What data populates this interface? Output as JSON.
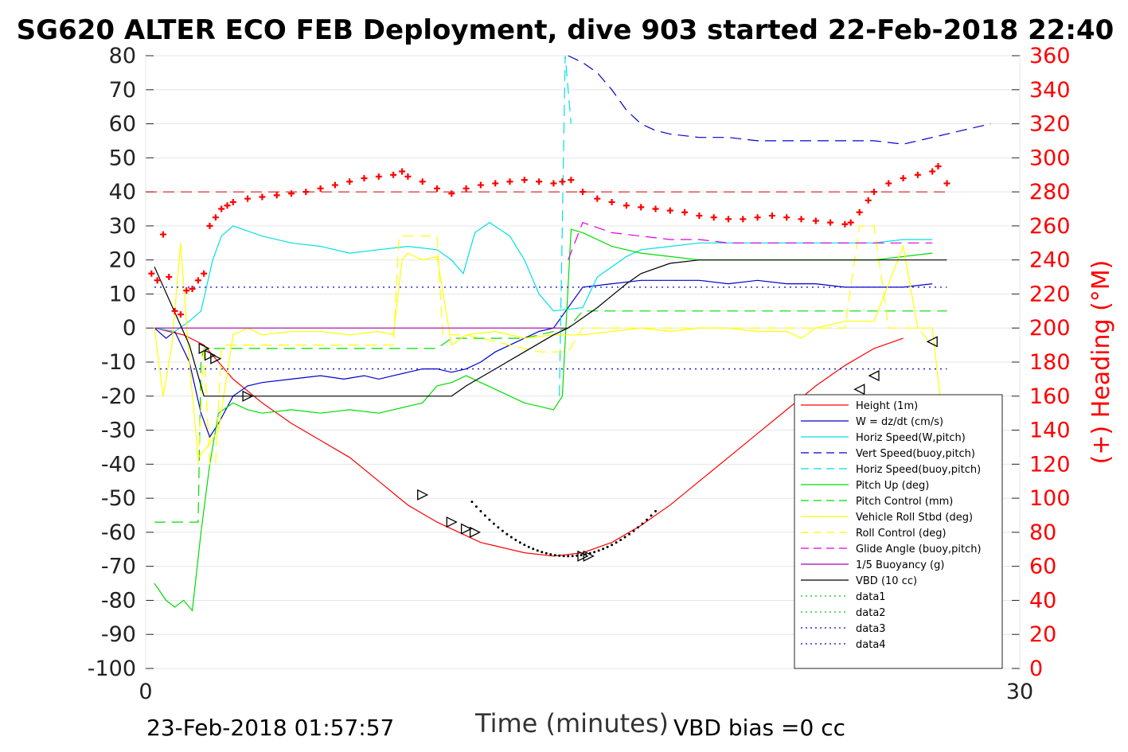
{
  "title": "SG620 ALTER ECO FEB Deployment, dive 903 started 22-Feb-2018 22:40",
  "footer": {
    "date": "23-Feb-2018 01:57:57",
    "vbd_bias": "VBD bias =0 cc"
  },
  "chart_data": {
    "type": "line",
    "xlabel": "Time (minutes)",
    "ylabel_right": "(+) Heading (°M)",
    "xlim": [
      0,
      30
    ],
    "ylim": [
      -100,
      80
    ],
    "ylim_right": [
      0,
      360
    ],
    "x_ticks": [
      "0",
      "30"
    ],
    "y_ticks": [
      "80",
      "70",
      "60",
      "50",
      "40",
      "30",
      "20",
      "10",
      "0",
      "-10",
      "-20",
      "-30",
      "-40",
      "-50",
      "-60",
      "-70",
      "-80",
      "-90",
      "-100"
    ],
    "y_right_ticks": [
      "360",
      "340",
      "320",
      "300",
      "280",
      "260",
      "240",
      "220",
      "200",
      "180",
      "160",
      "140",
      "120",
      "100",
      "80",
      "60",
      "40",
      "20",
      "0"
    ],
    "grid": true,
    "legend_position": "lower-right",
    "series": [
      {
        "name": "Height (1m)",
        "color": "#ff0000",
        "style": "solid",
        "x": [
          0.3,
          0.8,
          1.3,
          2.0,
          2.5,
          3.0,
          4.0,
          5.0,
          6.0,
          7.0,
          8.0,
          9.0,
          10.0,
          11.0,
          11.5,
          12.0,
          13.0,
          14.0,
          15.0,
          16.0,
          17.0,
          18.0,
          19.0,
          20.0,
          21.0,
          22.0,
          23.0,
          24.0,
          25.0,
          26.0,
          27.0,
          28.0,
          29.0,
          30.0
        ],
        "y": [
          0,
          -1,
          -2,
          -5,
          -10,
          -15,
          -22,
          -28,
          -33,
          -38,
          -45,
          -52,
          -57,
          -61,
          -63,
          -64,
          -66,
          -67,
          -66,
          -63,
          -58,
          -52,
          -45,
          -38,
          -31,
          -24,
          -17,
          -11,
          -6,
          -3,
          null,
          null,
          null,
          null
        ]
      },
      {
        "name": "W = dz/dt (cm/s)",
        "color": "#0000cc",
        "style": "solid",
        "x": [
          0.3,
          0.7,
          1.0,
          1.5,
          1.9,
          2.2,
          2.5,
          3.0,
          3.5,
          4.0,
          5.0,
          6.0,
          6.8,
          7.5,
          8.0,
          8.5,
          9.0,
          9.5,
          10.0,
          10.5,
          11.0,
          11.5,
          12.0,
          12.5,
          13.0,
          13.5,
          14.0,
          15.0,
          16.0,
          17.0,
          18.0,
          19.0,
          20.0,
          21.0,
          22.0,
          23.0,
          24.0,
          25.0,
          26.0,
          27.0,
          28.0,
          29.0,
          30.0
        ],
        "y": [
          0,
          -3,
          -1,
          -10,
          -25,
          -32,
          -28,
          -20,
          -17,
          -16,
          -15,
          -14,
          -15,
          -14,
          -15,
          -14,
          -13,
          -12,
          -12,
          -13,
          -12,
          -10,
          -7,
          -5,
          -3,
          -1,
          0,
          12,
          13,
          14,
          14,
          14,
          13,
          14,
          13,
          13,
          12,
          12,
          12,
          13,
          null,
          null,
          null
        ]
      },
      {
        "name": "Horiz Speed(W,pitch)",
        "color": "#00e0e0",
        "style": "solid",
        "x": [
          0.3,
          1.0,
          1.5,
          1.9,
          2.3,
          2.6,
          3.0,
          4.0,
          5.0,
          6.0,
          7.0,
          8.0,
          9.0,
          10.0,
          10.5,
          10.9,
          11.3,
          11.8,
          12.5,
          13.0,
          13.5,
          14.0,
          15.0,
          15.5,
          16.0,
          16.5,
          17.0,
          18.0,
          19.0,
          20.0,
          21.0,
          22.0,
          23.0,
          24.0,
          25.0,
          26.0,
          27.0,
          28.0,
          29.0,
          30.0
        ],
        "y": [
          0,
          -1,
          2,
          5,
          20,
          27,
          30,
          27,
          25,
          24,
          22,
          23,
          24,
          23,
          20,
          16,
          28,
          31,
          27,
          20,
          10,
          5,
          6,
          15,
          18,
          21,
          23,
          24,
          25,
          25,
          25,
          25,
          25,
          25,
          25,
          26,
          26,
          null,
          null,
          null
        ]
      },
      {
        "name": "Vert Speed(buoy,pitch)",
        "color": "#0000cc",
        "style": "dashed",
        "x": [
          14.5,
          15.0,
          15.5,
          16.0,
          16.5,
          17.0,
          17.5,
          18.0,
          19.0,
          20.0,
          21.0,
          22.0,
          23.0,
          24.0,
          25.0,
          26.0,
          27.0,
          28.0,
          29.0,
          30.0
        ],
        "y": [
          80,
          78,
          75,
          70,
          64,
          60,
          58,
          57,
          56,
          56,
          55,
          55,
          55,
          55,
          55,
          54,
          56,
          58,
          60,
          null
        ]
      },
      {
        "name": "Horiz Speed(buoy,pitch)",
        "color": "#00e0e0",
        "style": "dashed",
        "x": [
          14.2,
          14.4,
          14.6
        ],
        "y": [
          -20,
          80,
          60
        ]
      },
      {
        "name": "Pitch Up (deg)",
        "color": "#00dd00",
        "style": "solid",
        "x": [
          0.3,
          0.7,
          1.0,
          1.3,
          1.6,
          1.9,
          2.2,
          2.5,
          3.0,
          3.5,
          4.0,
          5.0,
          6.0,
          7.0,
          8.0,
          9.0,
          9.5,
          10.0,
          10.5,
          11.0,
          11.5,
          12.0,
          12.5,
          13.0,
          13.5,
          14.0,
          14.3,
          14.6,
          15.0,
          16.0,
          17.0,
          18.0,
          19.0,
          20.0,
          21.0,
          22.0,
          23.0,
          24.0,
          25.0,
          26.0,
          27.0,
          28.0,
          29.0,
          30.0
        ],
        "y": [
          -75,
          -80,
          -82,
          -80,
          -83,
          -60,
          -40,
          -25,
          -22,
          -24,
          -25,
          -24,
          -25,
          -24,
          -25,
          -23,
          -22,
          -17,
          -16,
          -14,
          -16,
          -18,
          -20,
          -22,
          -23,
          -24,
          -20,
          29,
          28,
          24,
          22,
          21,
          20,
          20,
          20,
          20,
          20,
          20,
          20,
          21,
          22,
          null,
          null,
          null
        ]
      },
      {
        "name": "Pitch Control (mm)",
        "color": "#00dd00",
        "style": "dashed",
        "x": [
          0.3,
          1.8,
          1.9,
          2.0,
          3.0,
          10.0,
          10.5,
          13.0,
          14.5,
          15.0,
          25.0,
          27.5
        ],
        "y": [
          -57,
          -57,
          -10,
          -6,
          -6,
          -6,
          -3,
          -3,
          0,
          5,
          5,
          5
        ]
      },
      {
        "name": "Vehicle Roll Stbd (deg)",
        "color": "#ffff00",
        "style": "solid",
        "x": [
          0.3,
          0.6,
          0.9,
          1.2,
          1.5,
          1.8,
          2.1,
          2.5,
          3.0,
          3.5,
          4.0,
          5.0,
          6.0,
          7.0,
          8.0,
          8.5,
          8.8,
          9.0,
          9.5,
          10.0,
          10.5,
          11.0,
          12.0,
          13.0,
          14.0,
          15.0,
          16.0,
          17.0,
          18.0,
          19.0,
          20.0,
          21.0,
          22.0,
          22.5,
          23.0,
          23.5,
          24.0,
          25.0,
          26.0,
          26.5,
          27.0,
          27.5
        ],
        "y": [
          0,
          -20,
          -5,
          25,
          -10,
          -38,
          -35,
          -30,
          -2,
          0,
          -2,
          -1,
          -1,
          -2,
          -1,
          -2,
          20,
          22,
          20,
          21,
          -5,
          -2,
          -1,
          -3,
          -2,
          -2,
          -1,
          0,
          -1,
          0,
          0,
          -1,
          -1,
          -3,
          0,
          1,
          2,
          2,
          24,
          0,
          0,
          -38
        ]
      },
      {
        "name": "Roll Control (deg)",
        "color": "#ffff00",
        "style": "dashed",
        "x": [
          1.8,
          2.0,
          2.2,
          2.4,
          2.6,
          8.5,
          8.7,
          9.5,
          10.0,
          10.2,
          11.0,
          13.5,
          14.5,
          15.0,
          24.0,
          24.5,
          25.0,
          25.5,
          26.0,
          26.5,
          27.0
        ],
        "y": [
          -40,
          -5,
          -40,
          -40,
          -5,
          -5,
          27,
          27,
          27,
          -2,
          -2,
          -7,
          -7,
          0,
          0,
          30,
          30,
          0,
          0,
          0,
          -5
        ]
      },
      {
        "name": "Glide Angle (buoy,pitch)",
        "color": "#dd00dd",
        "style": "dashed",
        "x": [
          14.5,
          15.0,
          16.0,
          17.0,
          18.0,
          19.0,
          20.0,
          21.0,
          22.0,
          23.0,
          24.0,
          25.0,
          26.0,
          27.0
        ],
        "y": [
          20,
          31,
          28,
          27,
          26,
          26,
          25,
          25,
          25,
          25,
          25,
          25,
          25,
          25
        ]
      },
      {
        "name": "1/5 Buoyancy (g)",
        "color": "#aa00aa",
        "style": "solid",
        "x": [
          0.3,
          14.5
        ],
        "y": [
          0,
          0
        ]
      },
      {
        "name": "VBD (10 cc)",
        "color": "#000000",
        "style": "solid",
        "x": [
          0.3,
          1.5,
          2.0,
          3.0,
          5.0,
          8.0,
          10.5,
          11.0,
          12.0,
          13.0,
          14.0,
          14.5,
          15.5,
          16.5,
          17.0,
          18.0,
          19.0,
          20.0,
          22.0,
          24.0,
          26.0,
          27.5
        ],
        "y": [
          18,
          -5,
          -20,
          -20,
          -20,
          -20,
          -20,
          -17,
          -12,
          -7,
          -2,
          0,
          6,
          13,
          16,
          19,
          20,
          20,
          20,
          20,
          20,
          20
        ]
      },
      {
        "name": "data1",
        "color": "#00cc00",
        "style": "dotted",
        "x": [],
        "y": []
      },
      {
        "name": "data2",
        "color": "#00cc00",
        "style": "dotted",
        "x": [],
        "y": []
      },
      {
        "name": "data3",
        "color": "#0000cc",
        "style": "dotted",
        "x": [
          0.3,
          27.5
        ],
        "y": [
          -12,
          -12
        ]
      },
      {
        "name": "data4",
        "color": "#0000cc",
        "style": "dotted",
        "x": [
          0.3,
          27.5
        ],
        "y": [
          12,
          12
        ]
      }
    ],
    "heading": {
      "name": "Heading (°M)",
      "axis": "right",
      "color": "#ff0000",
      "marker": "+",
      "mean": 280,
      "x": [
        0.2,
        0.4,
        0.6,
        0.8,
        1.0,
        1.2,
        1.4,
        1.6,
        1.8,
        2.0,
        2.2,
        2.4,
        2.6,
        2.8,
        3.0,
        3.5,
        4.0,
        4.5,
        5.0,
        5.5,
        6.0,
        6.5,
        7.0,
        7.5,
        8.0,
        8.5,
        8.8,
        9.0,
        9.5,
        10.0,
        10.5,
        11.0,
        11.5,
        12.0,
        12.5,
        13.0,
        13.5,
        14.0,
        14.3,
        14.6,
        15.0,
        15.5,
        16.0,
        16.5,
        17.0,
        17.5,
        18.0,
        18.5,
        19.0,
        19.5,
        20.0,
        20.5,
        21.0,
        21.5,
        22.0,
        22.5,
        23.0,
        23.5,
        24.0,
        24.2,
        24.5,
        24.8,
        25.0,
        25.5,
        26.0,
        26.5,
        27.0,
        27.2,
        27.5
      ],
      "y": [
        232,
        228,
        255,
        230,
        210,
        208,
        222,
        223,
        228,
        232,
        260,
        265,
        270,
        272,
        274,
        276,
        277,
        278,
        279,
        280,
        282,
        284,
        286,
        288,
        289,
        290,
        292,
        289,
        286,
        282,
        279,
        282,
        284,
        285,
        286,
        287,
        286,
        285,
        286,
        287,
        280,
        276,
        274,
        272,
        271,
        270,
        269,
        268,
        266,
        265,
        264,
        264,
        265,
        266,
        265,
        264,
        263,
        262,
        261,
        262,
        268,
        275,
        280,
        285,
        288,
        290,
        292,
        295,
        285
      ]
    },
    "markers": {
      "name": "Height markers",
      "style": "triangle",
      "color": "#000000",
      "x": [
        2.0,
        2.2,
        2.4,
        3.5,
        9.5,
        10.5,
        11.0,
        11.3,
        15.0,
        15.2,
        24.5,
        25.0,
        27.0
      ],
      "y": [
        -6,
        -8,
        -9,
        -20,
        -49,
        -57,
        -59,
        -60,
        -67,
        -67,
        -18,
        -14,
        -4
      ]
    }
  }
}
